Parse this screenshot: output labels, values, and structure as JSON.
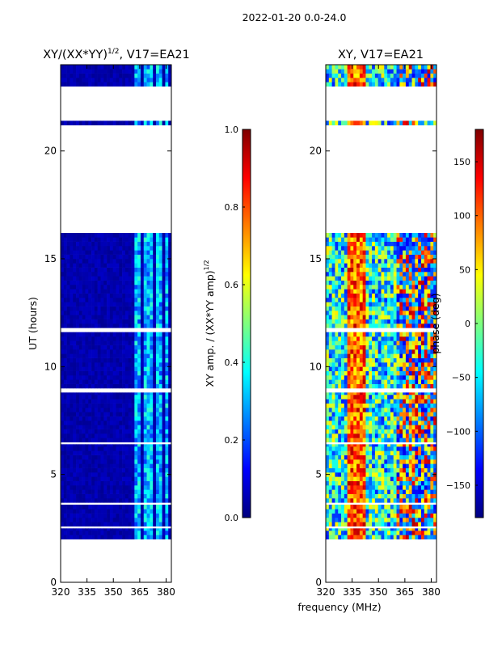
{
  "suptitle": "2022-01-20 0.0-24.0",
  "colors": {
    "jet": [
      "#00007f",
      "#0000ff",
      "#007fff",
      "#00ffff",
      "#7fff7f",
      "#ffff00",
      "#ff7f00",
      "#ff0000",
      "#7f0000"
    ],
    "background": "#ffffff",
    "axis": "#000000"
  },
  "chart_data": [
    {
      "type": "heatmap",
      "title_main": "XY/(XX*YY)",
      "title_sup": "1/2",
      "title_rest": ", V17=EA21",
      "ylabel": "UT (hours)",
      "xlim": [
        320,
        383
      ],
      "ylim": [
        0,
        24
      ],
      "xticks": [
        "320",
        "335",
        "350",
        "365",
        "380"
      ],
      "yticks": [
        "0",
        "5",
        "10",
        "15",
        "20"
      ],
      "data_segments_hours": [
        [
          2.0,
          2.5
        ],
        [
          2.6,
          3.6
        ],
        [
          3.7,
          6.4
        ],
        [
          6.5,
          8.8
        ],
        [
          9.0,
          11.6
        ],
        [
          11.8,
          16.2
        ],
        [
          21.2,
          21.4
        ],
        [
          23.0,
          24.0
        ]
      ],
      "bright_band_mhz": [
        [
          362,
          366
        ],
        [
          368,
          372
        ],
        [
          374,
          377
        ],
        [
          379,
          381
        ]
      ],
      "colorbar": {
        "label": "XY amp. / (XX*YY amp)",
        "label_sup": "1/2",
        "range": [
          0.0,
          1.0
        ],
        "ticks": [
          "0.0",
          "0.2",
          "0.4",
          "0.6",
          "0.8",
          "1.0"
        ]
      }
    },
    {
      "type": "heatmap",
      "title": "XY, V17=EA21",
      "xlabel": "frequency (MHz)",
      "xlim": [
        320,
        383
      ],
      "ylim": [
        0,
        24
      ],
      "xticks": [
        "320",
        "335",
        "350",
        "365",
        "380"
      ],
      "yticks": [
        "0",
        "5",
        "10",
        "15",
        "20"
      ],
      "data_segments_hours": [
        [
          2.0,
          2.5
        ],
        [
          2.6,
          3.6
        ],
        [
          3.7,
          6.4
        ],
        [
          6.5,
          8.8
        ],
        [
          9.0,
          11.6
        ],
        [
          11.8,
          16.2
        ],
        [
          21.2,
          21.4
        ],
        [
          23.0,
          24.0
        ]
      ],
      "red_band_mhz": [
        333,
        342
      ],
      "colorbar": {
        "label": "phase (deg)",
        "range": [
          -180,
          180
        ],
        "ticks": [
          "-150",
          "-100",
          "-50",
          "0",
          "50",
          "100",
          "150"
        ]
      }
    }
  ]
}
